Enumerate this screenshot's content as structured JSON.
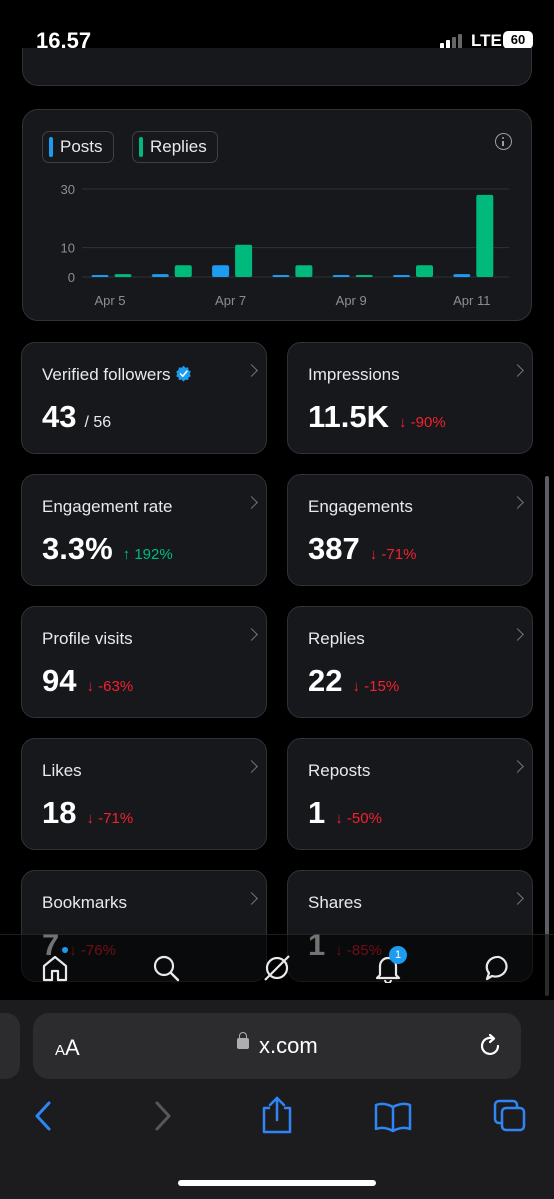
{
  "status_bar": {
    "time": "16.57",
    "network": "LTE",
    "battery": "60"
  },
  "chart_card": {
    "legend": [
      {
        "label": "Posts",
        "color": "#1d9bf0"
      },
      {
        "label": "Replies",
        "color": "#00ba7c"
      }
    ],
    "info_icon": "info-icon"
  },
  "chart_data": {
    "type": "bar",
    "categories": [
      "Apr 5",
      "Apr 6",
      "Apr 7",
      "Apr 8",
      "Apr 9",
      "Apr 10",
      "Apr 11"
    ],
    "x_tick_labels": [
      "Apr 5",
      "Apr 7",
      "Apr 9",
      "Apr 11"
    ],
    "series": [
      {
        "name": "Posts",
        "color": "#1d9bf0",
        "values": [
          0,
          1,
          4,
          0,
          0,
          0,
          1
        ]
      },
      {
        "name": "Replies",
        "color": "#00ba7c",
        "values": [
          1,
          4,
          11,
          4,
          0,
          4,
          28
        ]
      }
    ],
    "y_ticks": [
      0,
      10,
      30
    ],
    "ylim": [
      0,
      30
    ],
    "grid": true
  },
  "stats": [
    {
      "label": "Verified followers",
      "value": "43",
      "sub": "/ 56",
      "change": "",
      "verified": true
    },
    {
      "label": "Impressions",
      "value": "11.5K",
      "change": "↓ -90%",
      "dir": "down"
    },
    {
      "label": "Engagement rate",
      "value": "3.3%",
      "change": "↑ 192%",
      "dir": "up"
    },
    {
      "label": "Engagements",
      "value": "387",
      "change": "↓ -71%",
      "dir": "down"
    },
    {
      "label": "Profile visits",
      "value": "94",
      "change": "↓ -63%",
      "dir": "down"
    },
    {
      "label": "Replies",
      "value": "22",
      "change": "↓ -15%",
      "dir": "down"
    },
    {
      "label": "Likes",
      "value": "18",
      "change": "↓ -71%",
      "dir": "down"
    },
    {
      "label": "Reposts",
      "value": "1",
      "change": "↓ -50%",
      "dir": "down"
    },
    {
      "label": "Bookmarks",
      "value": "7",
      "change": "↓ -76%",
      "dir": "down"
    },
    {
      "label": "Shares",
      "value": "1",
      "change": "↓ -85%",
      "dir": "down"
    }
  ],
  "bottom_nav": {
    "items": [
      "home-icon",
      "search-icon",
      "grok-icon",
      "notifications-icon",
      "messages-icon"
    ],
    "notification_count": "1"
  },
  "safari": {
    "text_size_label": "AA",
    "url": "x.com",
    "buttons": [
      "back-icon",
      "forward-icon",
      "share-icon",
      "bookmarks-icon",
      "tabs-icon"
    ]
  },
  "colors": {
    "accent": "#1d9bf0",
    "up": "#00ba7c",
    "down": "#f4212e",
    "card": "#16181c"
  }
}
